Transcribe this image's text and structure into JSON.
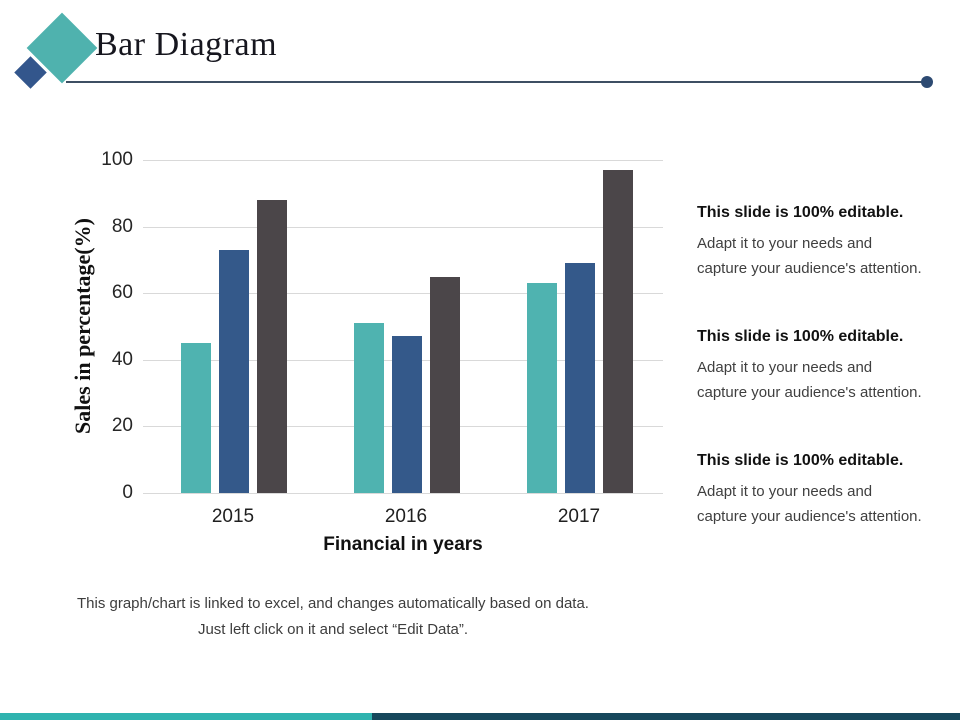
{
  "slide": {
    "title": "Bar Diagram"
  },
  "logo": {
    "primary_color": "#4FB2AE",
    "secondary_color": "#33568C"
  },
  "accent": {
    "rule_color": "#3D4F63",
    "dot_color": "#2D4A72",
    "footer_teal": "#2FB3AF",
    "footer_dark": "#16485C"
  },
  "editable_blocks": [
    {
      "title": "This slide is 100% editable.",
      "line1": "Adapt it to your needs and",
      "line2": "capture your audience's attention."
    },
    {
      "title": "This slide is 100% editable.",
      "line1": "Adapt it to your needs and",
      "line2": "capture your audience's attention."
    },
    {
      "title": "This slide is 100% editable.",
      "line1": "Adapt it to your needs and",
      "line2": "capture your audience's attention."
    }
  ],
  "footer": {
    "line1": "This graph/chart is linked to excel, and changes automatically based on data.",
    "line2": "Just left click on it and select “Edit Data”."
  },
  "chart_data": {
    "type": "bar",
    "title": "",
    "categories": [
      "2015",
      "2016",
      "2017"
    ],
    "series": [
      {
        "name": "series-teal",
        "color": "#4FB3B0",
        "values": [
          45,
          51,
          63
        ]
      },
      {
        "name": "series-blue",
        "color": "#34598A",
        "values": [
          73,
          47,
          69
        ]
      },
      {
        "name": "series-gray",
        "color": "#4B4649",
        "values": [
          88,
          65,
          97
        ]
      }
    ],
    "xlabel": "Financial in years",
    "ylabel": "Sales in percentage(%)",
    "ylim": [
      0,
      100
    ],
    "ytick_step": 20,
    "grid": true,
    "legend": "none"
  }
}
